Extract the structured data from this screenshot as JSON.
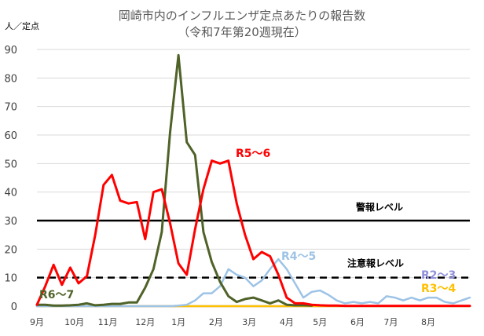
{
  "chart_data": {
    "type": "line",
    "title": "岡崎市内のインフルエンザ定点あたりの報告数",
    "subtitle": "（令和7年第20週現在）",
    "ylabel": "人／定点",
    "ylim": [
      0,
      90
    ],
    "yticks": [
      0,
      10,
      20,
      30,
      40,
      50,
      60,
      70,
      80,
      90
    ],
    "x_ticks": [
      {
        "label": "9月",
        "week": 1
      },
      {
        "label": "10月",
        "week": 5.5
      },
      {
        "label": "11月",
        "week": 9.5
      },
      {
        "label": "12月",
        "week": 14
      },
      {
        "label": "1月",
        "week": 18
      },
      {
        "label": "2月",
        "week": 22.5
      },
      {
        "label": "3月",
        "week": 26.5
      },
      {
        "label": "4月",
        "week": 31
      },
      {
        "label": "5月",
        "week": 35
      },
      {
        "label": "6月",
        "week": 39.5
      },
      {
        "label": "7月",
        "week": 43.5
      },
      {
        "label": "8月",
        "week": 48
      }
    ],
    "xlim": [
      1,
      53
    ],
    "reference_lines": [
      {
        "name": "警報レベル",
        "value": 30,
        "style": "solid"
      },
      {
        "name": "注意報レベル",
        "value": 10,
        "style": "dashed"
      }
    ],
    "series": [
      {
        "name": "R5～6",
        "color": "#ff0000",
        "values": [
          0.5,
          7,
          14.5,
          7.5,
          13.5,
          8,
          10.5,
          25,
          42.5,
          46,
          37,
          36,
          36.5,
          23.5,
          40,
          41,
          29,
          15,
          11,
          27,
          41,
          51,
          50,
          51,
          36,
          25,
          16.5,
          19,
          17.5,
          11,
          3,
          1,
          1,
          0.5,
          0.3,
          0.2,
          0.2,
          0.1,
          0.1,
          0.1,
          0.1,
          0.1,
          0.1,
          0.1,
          0.1,
          0.1,
          0.1,
          0.1,
          0.1,
          0.1,
          0.1,
          0.1,
          0.1
        ]
      },
      {
        "name": "R6～7",
        "color": "#4f6228",
        "values": [
          0.5,
          0.5,
          0.2,
          0.2,
          0.3,
          0.5,
          1,
          0.3,
          0.5,
          0.8,
          0.8,
          1.3,
          1.3,
          6.5,
          13,
          26,
          61,
          88,
          57.5,
          53,
          26,
          15.5,
          8.5,
          3.5,
          1.5,
          2.5,
          3,
          2,
          1,
          2,
          0.5,
          0.3,
          0.3,
          0.2
        ]
      },
      {
        "name": "R4～5",
        "color": "#9dc3e6",
        "values": [
          0,
          0,
          0,
          0,
          0,
          0,
          0,
          0,
          0,
          0,
          0,
          0,
          0,
          0,
          0,
          0,
          0,
          0.2,
          0.5,
          2,
          4.5,
          4.5,
          7,
          13,
          11,
          10,
          7,
          9,
          13,
          16.5,
          13,
          8,
          3,
          5,
          5.5,
          4,
          2,
          1,
          1.5,
          1,
          1.5,
          1,
          3.5,
          3,
          2,
          3,
          2,
          3,
          3,
          1.5,
          1,
          2,
          3
        ]
      },
      {
        "name": "R2～3",
        "color": "#8f8fdb",
        "values": [
          0,
          0,
          0,
          0,
          0,
          0,
          0,
          0,
          0,
          0,
          0,
          0,
          0,
          0,
          0,
          0,
          0,
          0,
          0,
          0,
          0,
          0,
          0,
          0,
          0,
          0,
          0,
          0,
          0,
          0,
          0,
          0,
          0,
          0,
          0,
          0,
          0,
          0,
          0,
          0,
          0,
          0,
          0,
          0,
          0,
          0,
          0,
          0,
          0,
          0,
          0,
          0,
          0
        ]
      },
      {
        "name": "R3～4",
        "color": "#ffc000",
        "values": [
          0,
          0,
          0,
          0,
          0,
          0,
          0,
          0,
          0,
          0,
          0,
          0,
          0,
          0,
          0,
          0,
          0,
          0,
          0,
          0,
          0,
          0,
          0,
          0,
          0,
          0,
          0,
          0,
          0,
          0,
          0,
          0,
          0,
          0,
          0,
          0,
          0,
          0,
          0,
          0,
          0,
          0,
          0,
          0,
          0,
          0,
          0,
          0,
          0,
          0,
          0,
          0,
          0
        ]
      }
    ]
  }
}
